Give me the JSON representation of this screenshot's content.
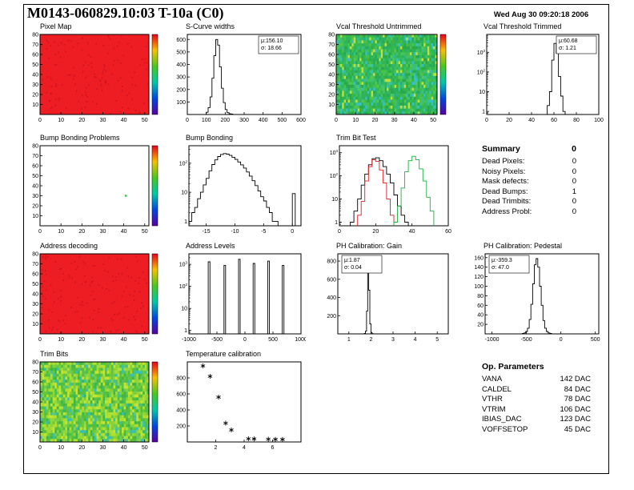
{
  "header": {
    "title": "M0143-060829.10:03 T-10a (C0)",
    "datetime": "Wed Aug 30 09:20:18 2006"
  },
  "summary": {
    "title": "Summary",
    "total": "0",
    "rows": [
      {
        "label": "Dead Pixels:",
        "value": "0"
      },
      {
        "label": "Noisy Pixels:",
        "value": "0"
      },
      {
        "label": "Mask defects:",
        "value": "0"
      },
      {
        "label": "Dead Bumps:",
        "value": "1"
      },
      {
        "label": "Dead Trimbits:",
        "value": "0"
      },
      {
        "label": "Address Probl:",
        "value": "0"
      }
    ]
  },
  "op_parameters": {
    "title": "Op. Parameters",
    "rows": [
      {
        "label": "VANA",
        "value": "142 DAC"
      },
      {
        "label": "CALDEL",
        "value": "84 DAC"
      },
      {
        "label": "VTHR",
        "value": "78 DAC"
      },
      {
        "label": "VTRIM",
        "value": "106 DAC"
      },
      {
        "label": "IBIAS_DAC",
        "value": "123 DAC"
      },
      {
        "label": "VOFFSETOP",
        "value": "45 DAC"
      }
    ]
  },
  "chart_data": [
    {
      "id": "pixel-map",
      "title": "Pixel Map",
      "type": "heatmap",
      "x": {
        "min": 0,
        "max": 52,
        "ticks": [
          0,
          10,
          20,
          30,
          40,
          50
        ]
      },
      "y": {
        "min": 0,
        "max": 80,
        "ticks": [
          10,
          20,
          30,
          40,
          50,
          60,
          70,
          80
        ]
      },
      "heat": {
        "solid": "#ee1c23",
        "noise": {
          "n": 140,
          "color": "#c1101a",
          "seed": 11
        }
      },
      "colorbar": true
    },
    {
      "id": "s-curve-widths",
      "title": "S-Curve widths",
      "type": "hist",
      "x": {
        "min": 0,
        "max": 600,
        "ticks": [
          0,
          100,
          200,
          300,
          400,
          500,
          600
        ]
      },
      "y": {
        "min": 0,
        "max": 640,
        "ticks": [
          100,
          200,
          300,
          400,
          500,
          600
        ]
      },
      "series": [
        {
          "color": "#000000",
          "x0": 100,
          "dx": 10,
          "counts": [
            18,
            55,
            140,
            290,
            470,
            600,
            555,
            380,
            210,
            95,
            40,
            15,
            6,
            3
          ]
        }
      ],
      "stats": {
        "pos": "tr",
        "lines": [
          "μ:156.10",
          "σ: 18.66"
        ]
      }
    },
    {
      "id": "vcal-threshold-untrimmed",
      "title": "Vcal Threshold Untrimmed",
      "type": "heatmap",
      "x": {
        "min": 0,
        "max": 52,
        "ticks": [
          0,
          10,
          20,
          30,
          40,
          50
        ]
      },
      "y": {
        "min": 0,
        "max": 80,
        "ticks": [
          10,
          20,
          30,
          40,
          50,
          60,
          70,
          80
        ]
      },
      "heat": {
        "palette": [
          "#2eb457",
          "#35bb50",
          "#2aa94b",
          "#41c255",
          "#30b878",
          "#52c94f",
          "#3cb842",
          "#2eb457",
          "#36c08e",
          "#bfdf3b",
          "#35c0c8",
          "#2eb457",
          "#45c25a",
          "#2aa94b",
          "#28b068",
          "#49c04a"
        ],
        "seed": 23,
        "cols": 52,
        "rows": 27
      },
      "colorbar": true
    },
    {
      "id": "vcal-threshold-trimmed",
      "title": "Vcal Threshold Trimmed",
      "type": "hist",
      "x": {
        "min": 0,
        "max": 100,
        "ticks": [
          0,
          20,
          40,
          60,
          80,
          100
        ]
      },
      "y": {
        "log": true,
        "min": 0.7,
        "max": 8000,
        "ticks": [
          1,
          10,
          100,
          1000
        ],
        "tick_labels": [
          "1",
          "10",
          "10^2",
          "10^3"
        ]
      },
      "series": [
        {
          "color": "#000000",
          "x0": 54,
          "dx": 2,
          "counts": [
            2,
            10,
            400,
            2800,
            900,
            60,
            6,
            1
          ]
        }
      ],
      "stats": {
        "pos": "tr",
        "lines": [
          "μ:60.68",
          "σ: 1.21"
        ]
      }
    },
    {
      "id": "bump-bonding-problems",
      "title": "Bump Bonding Problems",
      "type": "heatmap",
      "x": {
        "min": 0,
        "max": 52,
        "ticks": [
          0,
          10,
          20,
          30,
          40,
          50
        ]
      },
      "y": {
        "min": 0,
        "max": 80,
        "ticks": [
          10,
          20,
          30,
          40,
          50,
          60,
          70,
          80
        ]
      },
      "heat": {
        "solid": "#ffffff",
        "points": [
          {
            "x": 41,
            "y": 30,
            "color": "#2ec24e"
          }
        ]
      },
      "colorbar": true
    },
    {
      "id": "bump-bonding",
      "title": "Bump Bonding",
      "type": "hist",
      "x": {
        "min": -18,
        "max": 1.5,
        "ticks": [
          -15,
          -10,
          -5,
          0
        ]
      },
      "y": {
        "log": true,
        "min": 0.7,
        "max": 400,
        "ticks": [
          1,
          10,
          100
        ],
        "tick_labels": [
          "1",
          "10",
          "10^2"
        ]
      },
      "series": [
        {
          "color": "#000000",
          "x0": -18,
          "dx": 0.5,
          "counts": [
            1,
            2,
            3,
            6,
            10,
            18,
            30,
            55,
            90,
            130,
            170,
            200,
            215,
            205,
            185,
            160,
            135,
            110,
            88,
            68,
            50,
            36,
            25,
            17,
            11,
            7,
            5,
            3,
            2,
            1,
            1,
            0,
            0,
            0,
            0,
            0,
            9,
            0
          ]
        }
      ]
    },
    {
      "id": "trim-bit-test",
      "title": "Trim Bit Test",
      "type": "hist",
      "x": {
        "min": 0,
        "max": 60,
        "ticks": [
          0,
          20,
          40,
          60
        ]
      },
      "y": {
        "log": true,
        "min": 0.7,
        "max": 2000,
        "ticks": [
          1,
          10,
          100,
          1000
        ],
        "tick_labels": [
          "1",
          "10",
          "10^2",
          "10^3"
        ]
      },
      "series": [
        {
          "color": "#000000",
          "x0": 6,
          "dx": 2,
          "counts": [
            1,
            3,
            10,
            40,
            120,
            300,
            550,
            600,
            450,
            250,
            120,
            50,
            15,
            5,
            2,
            1
          ]
        },
        {
          "color": "#e8191f",
          "x0": 10,
          "dx": 2,
          "counts": [
            2,
            8,
            60,
            250,
            500,
            420,
            180,
            50,
            10,
            2
          ]
        },
        {
          "color": "#14b43c",
          "x0": 30,
          "dx": 2,
          "counts": [
            1,
            5,
            30,
            150,
            450,
            700,
            500,
            200,
            60,
            12,
            3
          ]
        }
      ]
    },
    {
      "id": "address-decoding",
      "title": "Address decoding",
      "type": "heatmap",
      "x": {
        "min": 0,
        "max": 52,
        "ticks": [
          0,
          10,
          20,
          30,
          40,
          50
        ]
      },
      "y": {
        "min": 0,
        "max": 80,
        "ticks": [
          10,
          20,
          30,
          40,
          50,
          60,
          70,
          80
        ]
      },
      "heat": {
        "solid": "#ee1c23",
        "noise": {
          "n": 140,
          "color": "#c1101a",
          "seed": 31
        }
      },
      "colorbar": true
    },
    {
      "id": "address-levels",
      "title": "Address Levels",
      "type": "spikes",
      "x": {
        "min": -1000,
        "max": 1000,
        "ticks": [
          -1000,
          -500,
          0,
          500,
          1000
        ]
      },
      "y": {
        "log": true,
        "min": 0.7,
        "max": 3000,
        "ticks": [
          1,
          10,
          100,
          1000
        ],
        "tick_labels": [
          "1",
          "10",
          "10^2",
          "10^3"
        ]
      },
      "spikes": [
        [
          -640,
          1300
        ],
        [
          -360,
          900
        ],
        [
          -100,
          1700
        ],
        [
          160,
          1100
        ],
        [
          420,
          1400
        ],
        [
          680,
          900
        ]
      ],
      "spike_width": 30
    },
    {
      "id": "ph-calibration-gain",
      "title": "PH Calibration: Gain",
      "type": "hist",
      "x": {
        "min": 0.5,
        "max": 5.5,
        "ticks": [
          1,
          2,
          3,
          4,
          5
        ]
      },
      "y": {
        "min": 0,
        "max": 880,
        "ticks": [
          200,
          400,
          600,
          800
        ]
      },
      "series": [
        {
          "color": "#000000",
          "x0": 1.7,
          "dx": 0.05,
          "counts": [
            4,
            30,
            250,
            800,
            480,
            110,
            15,
            3
          ]
        }
      ],
      "stats": {
        "pos": "tl",
        "lines": [
          "μ:1.87",
          "σ: 0.04"
        ]
      }
    },
    {
      "id": "ph-calibration-pedestal",
      "title": "PH Calibration: Pedestal",
      "type": "hist",
      "x": {
        "min": -1100,
        "max": 550,
        "ticks": [
          -1000,
          -500,
          0,
          500
        ]
      },
      "y": {
        "min": 0,
        "max": 168,
        "ticks": [
          20,
          40,
          60,
          80,
          100,
          120,
          140,
          160
        ]
      },
      "series": [
        {
          "color": "#000000",
          "x0": -560,
          "dx": 25,
          "counts": [
            1,
            2,
            5,
            12,
            30,
            62,
            105,
            145,
            158,
            140,
            100,
            60,
            28,
            12,
            5,
            2,
            1
          ]
        }
      ],
      "stats": {
        "pos": "tl",
        "lines": [
          "μ:-359.3",
          "σ: 47.0"
        ]
      }
    },
    {
      "id": "trim-bits",
      "title": "Trim Bits",
      "type": "heatmap",
      "x": {
        "min": 0,
        "max": 52,
        "ticks": [
          0,
          10,
          20,
          30,
          40,
          50
        ]
      },
      "y": {
        "min": 0,
        "max": 80,
        "ticks": [
          10,
          20,
          30,
          40,
          50,
          60,
          70,
          80
        ]
      },
      "heat": {
        "palette": [
          "#4fbf3f",
          "#66c93b",
          "#86d337",
          "#a8dc33",
          "#c6e42f",
          "#5abf4f",
          "#3db54a",
          "#72cc4e",
          "#93d63a",
          "#38c0b0",
          "#4fbf3f",
          "#b0e030"
        ],
        "seed": 37,
        "cols": 52,
        "rows": 27
      },
      "colorbar": true
    },
    {
      "id": "temperature-calibration",
      "title": "Temperature calibration",
      "type": "scatter",
      "x": {
        "min": 0,
        "max": 8,
        "ticks": [
          2,
          4,
          6
        ]
      },
      "y": {
        "min": 0,
        "max": 1000,
        "ticks": [
          200,
          400,
          600,
          800
        ]
      },
      "points": [
        [
          1.1,
          950
        ],
        [
          1.6,
          820
        ],
        [
          2.2,
          560
        ],
        [
          2.7,
          235
        ],
        [
          3.1,
          150
        ],
        [
          4.3,
          40
        ],
        [
          4.7,
          38
        ],
        [
          5.7,
          35
        ],
        [
          6.2,
          33
        ],
        [
          6.7,
          32
        ]
      ]
    }
  ]
}
